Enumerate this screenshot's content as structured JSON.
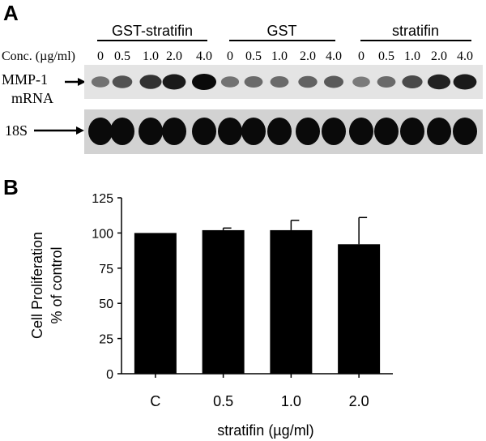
{
  "panel_a": {
    "letter": "A",
    "groups": [
      "GST-stratifin",
      "GST",
      "stratifin"
    ],
    "conc_label": "Conc. (µg/ml)",
    "lane_concs": [
      "0",
      "0.5",
      "1.0",
      "2.0",
      "4.0"
    ],
    "rows": [
      {
        "label_lines": [
          "MMP-1",
          "mRNA"
        ],
        "intensities": [
          0.35,
          0.55,
          0.75,
          0.9,
          1.0,
          0.35,
          0.4,
          0.4,
          0.45,
          0.5,
          0.3,
          0.4,
          0.6,
          0.85,
          0.9
        ]
      },
      {
        "label_lines": [
          "18S"
        ],
        "intensities": [
          1,
          1,
          1,
          1,
          1,
          1,
          1,
          1,
          1,
          1,
          1,
          1,
          1,
          1,
          1
        ]
      }
    ]
  },
  "chart_data": {
    "panel": "B",
    "type": "bar",
    "categories": [
      "C",
      "0.5",
      "1.0",
      "2.0"
    ],
    "values": [
      100,
      102,
      102,
      92
    ],
    "errors": [
      0,
      1.5,
      7,
      19
    ],
    "xlabel": "stratifin (µg/ml)",
    "ylabel_lines": [
      "Cell Proliferation",
      "% of control"
    ],
    "ylim": [
      0,
      125
    ],
    "yticks": [
      0,
      25,
      50,
      75,
      100,
      125
    ],
    "bar_color": "#000000",
    "grid": false
  }
}
